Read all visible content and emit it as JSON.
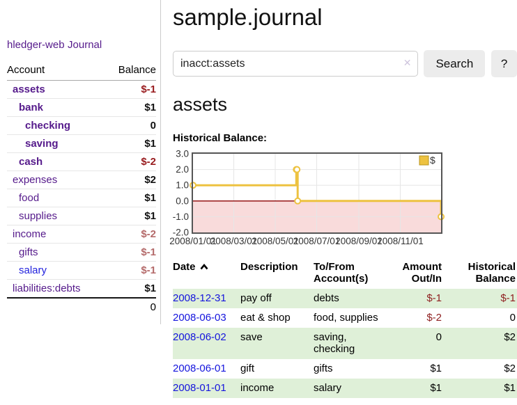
{
  "sidebar": {
    "app_title": "hledger-web",
    "journal_label": "Journal",
    "accounts_table": {
      "headers": {
        "account": "Account",
        "balance": "Balance"
      },
      "rows": [
        {
          "name": "assets",
          "indent": 1,
          "bold": true,
          "link_color": "purple",
          "balance": "$-1",
          "balance_style": "neg-strong"
        },
        {
          "name": "bank",
          "indent": 2,
          "bold": true,
          "link_color": "purple",
          "balance": "$1",
          "balance_style": "pos"
        },
        {
          "name": "checking",
          "indent": 3,
          "bold": true,
          "link_color": "purple",
          "balance": "0",
          "balance_style": "pos"
        },
        {
          "name": "saving",
          "indent": 3,
          "bold": true,
          "link_color": "purple",
          "balance": "$1",
          "balance_style": "pos"
        },
        {
          "name": "cash",
          "indent": 2,
          "bold": true,
          "link_color": "purple",
          "balance": "$-2",
          "balance_style": "neg-strong"
        },
        {
          "name": "expenses",
          "indent": 1,
          "bold": false,
          "link_color": "purple",
          "balance": "$2",
          "balance_style": "pos"
        },
        {
          "name": "food",
          "indent": 2,
          "bold": false,
          "link_color": "purple",
          "balance": "$1",
          "balance_style": "pos"
        },
        {
          "name": "supplies",
          "indent": 2,
          "bold": false,
          "link_color": "purple",
          "balance": "$1",
          "balance_style": "pos"
        },
        {
          "name": "income",
          "indent": 1,
          "bold": false,
          "link_color": "purple",
          "balance": "$-2",
          "balance_style": "neg-muted"
        },
        {
          "name": "gifts",
          "indent": 2,
          "bold": false,
          "link_color": "purple",
          "balance": "$-1",
          "balance_style": "neg-muted"
        },
        {
          "name": "salary",
          "indent": 2,
          "bold": false,
          "link_color": "blue",
          "balance": "$-1",
          "balance_style": "neg-muted"
        },
        {
          "name": "liabilities:debts",
          "indent": 1,
          "bold": false,
          "link_color": "purple",
          "balance": "$1",
          "balance_style": "pos"
        }
      ],
      "total": "0"
    }
  },
  "main": {
    "title": "sample.journal",
    "search": {
      "value": "inacct:assets",
      "clear_icon": "✕",
      "button_label": "Search",
      "help_label": "?"
    },
    "account_heading": "assets",
    "chart_label": "Historical Balance:",
    "register_table": {
      "headers": {
        "date": "Date",
        "description": "Description",
        "accounts": "To/From\nAccount(s)",
        "amount": "Amount\nOut/In",
        "balance": "Historical\nBalance"
      },
      "rows": [
        {
          "date": "2008-12-31",
          "description": "pay off",
          "accounts": "debts",
          "amount": "$-1",
          "amount_neg": true,
          "balance": "$-1",
          "balance_neg": true,
          "shade": true
        },
        {
          "date": "2008-06-03",
          "description": "eat & shop",
          "accounts": "food, supplies",
          "amount": "$-2",
          "amount_neg": true,
          "balance": "0",
          "balance_neg": false,
          "shade": false
        },
        {
          "date": "2008-06-02",
          "description": "save",
          "accounts": "saving, checking",
          "amount": "0",
          "amount_neg": false,
          "balance": "$2",
          "balance_neg": false,
          "shade": true
        },
        {
          "date": "2008-06-01",
          "description": "gift",
          "accounts": "gifts",
          "amount": "$1",
          "amount_neg": false,
          "balance": "$2",
          "balance_neg": false,
          "shade": false
        },
        {
          "date": "2008-01-01",
          "description": "income",
          "accounts": "salary",
          "amount": "$1",
          "amount_neg": false,
          "balance": "$1",
          "balance_neg": false,
          "shade": true
        }
      ]
    }
  },
  "chart_data": {
    "type": "line",
    "step": true,
    "title": "Historical Balance:",
    "legend": {
      "label": "$",
      "position": "top-right"
    },
    "x_range": [
      "2008-01-01",
      "2008-12-31"
    ],
    "ylim": [
      -2,
      3
    ],
    "series": [
      {
        "name": "$",
        "points": [
          {
            "date": "2008-01-01",
            "value": 1
          },
          {
            "date": "2008-06-01",
            "value": 2
          },
          {
            "date": "2008-06-02",
            "value": 2
          },
          {
            "date": "2008-06-03",
            "value": 0
          },
          {
            "date": "2008-12-31",
            "value": -1
          }
        ]
      }
    ],
    "y_ticks": [
      {
        "v": 3,
        "label": "3.0"
      },
      {
        "v": 2,
        "label": "2.0"
      },
      {
        "v": 1,
        "label": "1.0"
      },
      {
        "v": 0,
        "label": "0.0"
      },
      {
        "v": -1,
        "label": "-1.0"
      },
      {
        "v": -2,
        "label": "-2.0"
      }
    ],
    "x_ticks": [
      {
        "date": "2008-01-01",
        "label": "2008/01/01"
      },
      {
        "date": "2008-03-01",
        "label": "2008/03/01"
      },
      {
        "date": "2008-05-01",
        "label": "2008/05/01"
      },
      {
        "date": "2008-07-01",
        "label": "2008/07/01"
      },
      {
        "date": "2008-09-01",
        "label": "2008/09/01"
      },
      {
        "date": "2008-11-01",
        "label": "2008/11/01"
      }
    ],
    "colors": {
      "line": "#edc240",
      "marker_fill": "#ffffff",
      "legend_square_border": "#b8941f",
      "below_zero_fill": "#f9dbdb",
      "zero_line": "#8b0000",
      "grid": "#e6e6e6",
      "plot_border": "#555555",
      "axis_text": "#333333"
    }
  }
}
